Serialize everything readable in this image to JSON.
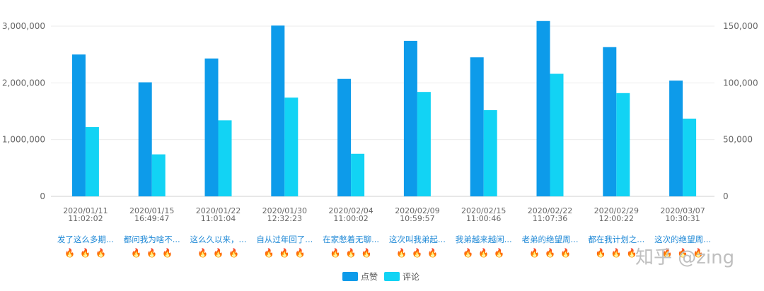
{
  "chart_data": {
    "type": "bar",
    "categories": [
      "2020/01/11 11:02:02",
      "2020/01/15 16:49:47",
      "2020/01/22 11:01:04",
      "2020/01/30 12:32:23",
      "2020/02/04 11:00:02",
      "2020/02/09 10:59:57",
      "2020/02/15 11:00:46",
      "2020/02/22 11:07:36",
      "2020/02/29 12:00:22",
      "2020/03/07 10:30:31"
    ],
    "category_titles": [
      "发了这么多期...",
      "都问我为啥不...",
      "这么久以来，...",
      "自从过年回了...",
      "在家憋着无聊...",
      "这次叫我弟起...",
      "我弟越来越闲...",
      "老弟的绝望周...",
      "都在我计划之...",
      "这次的绝望周..."
    ],
    "series": [
      {
        "name": "点赞",
        "axis": "left",
        "color": "#0d9bea",
        "values": [
          2500000,
          2010000,
          2430000,
          3010000,
          2070000,
          2740000,
          2450000,
          3090000,
          2630000,
          2040000
        ]
      },
      {
        "name": "评论",
        "axis": "right",
        "color": "#12d3f4",
        "values": [
          61000,
          37000,
          67000,
          87000,
          37500,
          92000,
          76000,
          108000,
          91000,
          68500
        ]
      }
    ],
    "y_left": {
      "ylim": [
        0,
        3000000
      ],
      "ticks": [
        "0",
        "1,000,000",
        "2,000,000",
        "3,000,000"
      ]
    },
    "y_right": {
      "ylim": [
        0,
        150000
      ],
      "ticks": [
        "0",
        "50,000",
        "100,000",
        "150,000"
      ]
    },
    "legend": {
      "placement": "bottom-center",
      "items": [
        "点赞",
        "评论"
      ]
    },
    "grid": true,
    "hot_marker": "🔥",
    "hot_marker_count": 3,
    "watermark": "知乎 @zing"
  }
}
